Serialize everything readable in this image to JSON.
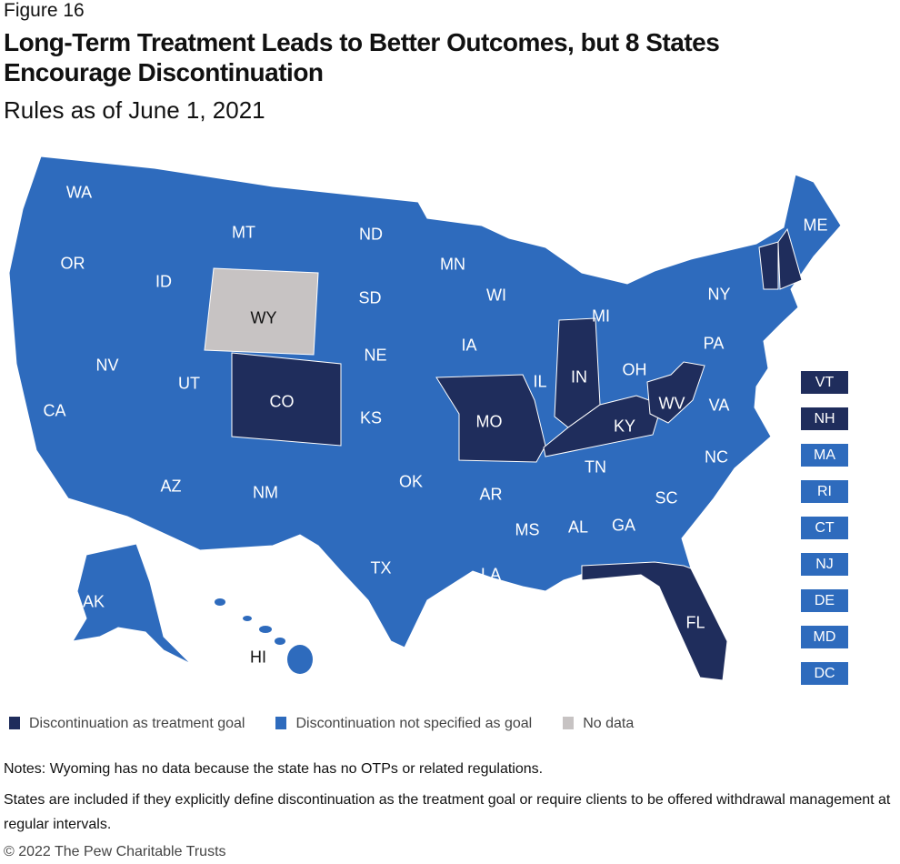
{
  "figure_label": "Figure 16",
  "title": "Long-Term Treatment Leads to Better Outcomes, but 8 States Encourage Discontinuation",
  "subtitle": "Rules as of June 1, 2021",
  "colors": {
    "goal": "#1f2d5c",
    "not_specified": "#2e6bbd",
    "no_data": "#c7c3c3"
  },
  "states": [
    {
      "abbr": "WA",
      "cat": "not_specified"
    },
    {
      "abbr": "OR",
      "cat": "not_specified"
    },
    {
      "abbr": "CA",
      "cat": "not_specified"
    },
    {
      "abbr": "ID",
      "cat": "not_specified"
    },
    {
      "abbr": "NV",
      "cat": "not_specified"
    },
    {
      "abbr": "MT",
      "cat": "not_specified"
    },
    {
      "abbr": "WY",
      "cat": "no_data"
    },
    {
      "abbr": "UT",
      "cat": "not_specified"
    },
    {
      "abbr": "AZ",
      "cat": "not_specified"
    },
    {
      "abbr": "CO",
      "cat": "goal"
    },
    {
      "abbr": "NM",
      "cat": "not_specified"
    },
    {
      "abbr": "ND",
      "cat": "not_specified"
    },
    {
      "abbr": "SD",
      "cat": "not_specified"
    },
    {
      "abbr": "NE",
      "cat": "not_specified"
    },
    {
      "abbr": "KS",
      "cat": "not_specified"
    },
    {
      "abbr": "OK",
      "cat": "not_specified"
    },
    {
      "abbr": "TX",
      "cat": "not_specified"
    },
    {
      "abbr": "MN",
      "cat": "not_specified"
    },
    {
      "abbr": "IA",
      "cat": "not_specified"
    },
    {
      "abbr": "MO",
      "cat": "goal"
    },
    {
      "abbr": "AR",
      "cat": "not_specified"
    },
    {
      "abbr": "LA",
      "cat": "not_specified"
    },
    {
      "abbr": "WI",
      "cat": "not_specified"
    },
    {
      "abbr": "IL",
      "cat": "not_specified"
    },
    {
      "abbr": "MS",
      "cat": "not_specified"
    },
    {
      "abbr": "MI",
      "cat": "not_specified"
    },
    {
      "abbr": "IN",
      "cat": "goal"
    },
    {
      "abbr": "KY",
      "cat": "goal"
    },
    {
      "abbr": "TN",
      "cat": "not_specified"
    },
    {
      "abbr": "AL",
      "cat": "not_specified"
    },
    {
      "abbr": "OH",
      "cat": "not_specified"
    },
    {
      "abbr": "WV",
      "cat": "goal"
    },
    {
      "abbr": "GA",
      "cat": "not_specified"
    },
    {
      "abbr": "FL",
      "cat": "goal"
    },
    {
      "abbr": "SC",
      "cat": "not_specified"
    },
    {
      "abbr": "NC",
      "cat": "not_specified"
    },
    {
      "abbr": "VA",
      "cat": "not_specified"
    },
    {
      "abbr": "PA",
      "cat": "not_specified"
    },
    {
      "abbr": "NY",
      "cat": "not_specified"
    },
    {
      "abbr": "ME",
      "cat": "not_specified"
    },
    {
      "abbr": "AK",
      "cat": "not_specified"
    },
    {
      "abbr": "HI",
      "cat": "not_specified"
    }
  ],
  "small_states": [
    {
      "abbr": "VT",
      "cat": "goal"
    },
    {
      "abbr": "NH",
      "cat": "goal"
    },
    {
      "abbr": "MA",
      "cat": "not_specified"
    },
    {
      "abbr": "RI",
      "cat": "not_specified"
    },
    {
      "abbr": "CT",
      "cat": "not_specified"
    },
    {
      "abbr": "NJ",
      "cat": "not_specified"
    },
    {
      "abbr": "DE",
      "cat": "not_specified"
    },
    {
      "abbr": "MD",
      "cat": "not_specified"
    },
    {
      "abbr": "DC",
      "cat": "not_specified"
    }
  ],
  "legend": [
    {
      "label": "Discontinuation as treatment goal",
      "cat": "goal"
    },
    {
      "label": "Discontinuation not specified as goal",
      "cat": "not_specified"
    },
    {
      "label": "No data",
      "cat": "no_data"
    }
  ],
  "notes": [
    "Notes: Wyoming has no data because the state has no OTPs or related regulations.",
    "States are included if they explicitly define discontinuation as the treatment goal or require clients to be offered withdrawal management at regular intervals."
  ],
  "copyright": "© 2022 The Pew Charitable Trusts"
}
